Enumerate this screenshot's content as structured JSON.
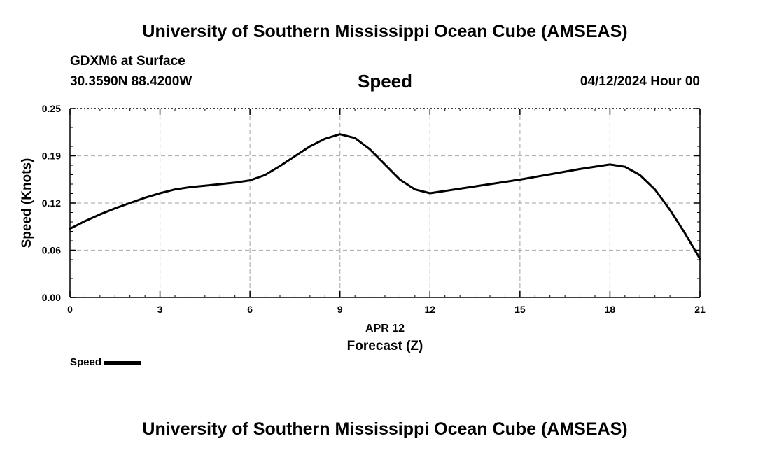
{
  "header": {
    "title": "University of Southern Mississippi Ocean Cube (AMSEAS)",
    "station": "GDXM6 at Surface",
    "coords": "30.3590N  88.4200W",
    "datetime": "04/12/2024 Hour 00"
  },
  "footer": {
    "title": "University of Southern Mississippi Ocean Cube (AMSEAS)"
  },
  "legend": {
    "label": "Speed",
    "color": "#000000"
  },
  "chart_data": {
    "type": "line",
    "title": "Speed",
    "xlabel": "Forecast (Z)",
    "xsublabel": "APR 12",
    "ylabel": "Speed (Knots)",
    "xlim": [
      0,
      21
    ],
    "ylim": [
      0,
      0.25
    ],
    "xticks": [
      0,
      3,
      6,
      9,
      12,
      15,
      18,
      21
    ],
    "xtick_labels": [
      "0",
      "3",
      "6",
      "9",
      "12",
      "15",
      "18",
      "21"
    ],
    "yticks": [
      0,
      0.0625,
      0.125,
      0.1875,
      0.25
    ],
    "ytick_labels": [
      "0.00",
      "0.06",
      "0.12",
      "0.19",
      "0.25"
    ],
    "grid": true,
    "series": [
      {
        "name": "Speed",
        "x": [
          0,
          0.5,
          1,
          1.5,
          2,
          2.5,
          3,
          3.5,
          4,
          4.5,
          5,
          5.5,
          6,
          6.5,
          7,
          7.5,
          8,
          8.5,
          9,
          9.5,
          10,
          10.5,
          11,
          11.5,
          12,
          13,
          14,
          15,
          16,
          17,
          18,
          18.5,
          19,
          19.5,
          20,
          20.5,
          21
        ],
        "values": [
          0.091,
          0.101,
          0.11,
          0.118,
          0.125,
          0.132,
          0.138,
          0.143,
          0.146,
          0.148,
          0.15,
          0.152,
          0.155,
          0.162,
          0.174,
          0.187,
          0.2,
          0.21,
          0.216,
          0.211,
          0.196,
          0.176,
          0.156,
          0.143,
          0.138,
          0.144,
          0.15,
          0.156,
          0.163,
          0.17,
          0.176,
          0.173,
          0.162,
          0.143,
          0.116,
          0.085,
          0.051
        ]
      }
    ]
  }
}
